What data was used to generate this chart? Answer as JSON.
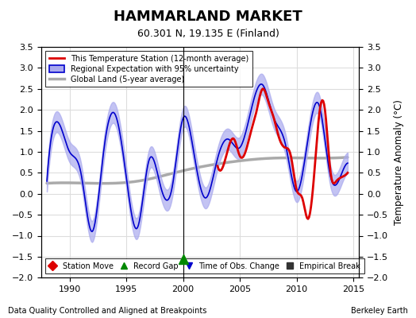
{
  "title": "HAMMARLAND MARKET",
  "subtitle": "60.301 N, 19.135 E (Finland)",
  "ylabel": "Temperature Anomaly (°C)",
  "xlabel_left": "Data Quality Controlled and Aligned at Breakpoints",
  "xlabel_right": "Berkeley Earth",
  "ylim": [
    -2.0,
    3.5
  ],
  "xlim": [
    1987.5,
    2015.5
  ],
  "xticks": [
    1990,
    1995,
    2000,
    2005,
    2010,
    2015
  ],
  "yticks": [
    -2,
    -1.5,
    -1,
    -0.5,
    0,
    0.5,
    1,
    1.5,
    2,
    2.5,
    3,
    3.5
  ],
  "color_red": "#DD0000",
  "color_blue": "#0000CC",
  "color_blue_fill": "#AAAAEE",
  "color_gray": "#AAAAAA",
  "color_green": "#008800",
  "bg_color": "#FFFFFF",
  "grid_color": "#DDDDDD",
  "vertical_line_x": 2000,
  "record_gap_x": 2000,
  "record_gap_y": -1.55,
  "legend1_entries": [
    {
      "label": "This Temperature Station (12-month average)",
      "color": "#DD0000",
      "lw": 2.0
    },
    {
      "label": "Regional Expectation with 95% uncertainty",
      "color": "#0000CC",
      "fill": "#AAAAEE",
      "lw": 1.5
    },
    {
      "label": "Global Land (5-year average)",
      "color": "#AAAAAA",
      "lw": 2.5
    }
  ],
  "legend2_entries": [
    {
      "label": "Station Move",
      "marker": "D",
      "color": "#DD0000"
    },
    {
      "label": "Record Gap",
      "marker": "^",
      "color": "#008800"
    },
    {
      "label": "Time of Obs. Change",
      "marker": "v",
      "color": "#0000CC"
    },
    {
      "label": "Empirical Break",
      "marker": "s",
      "color": "#333333"
    }
  ]
}
